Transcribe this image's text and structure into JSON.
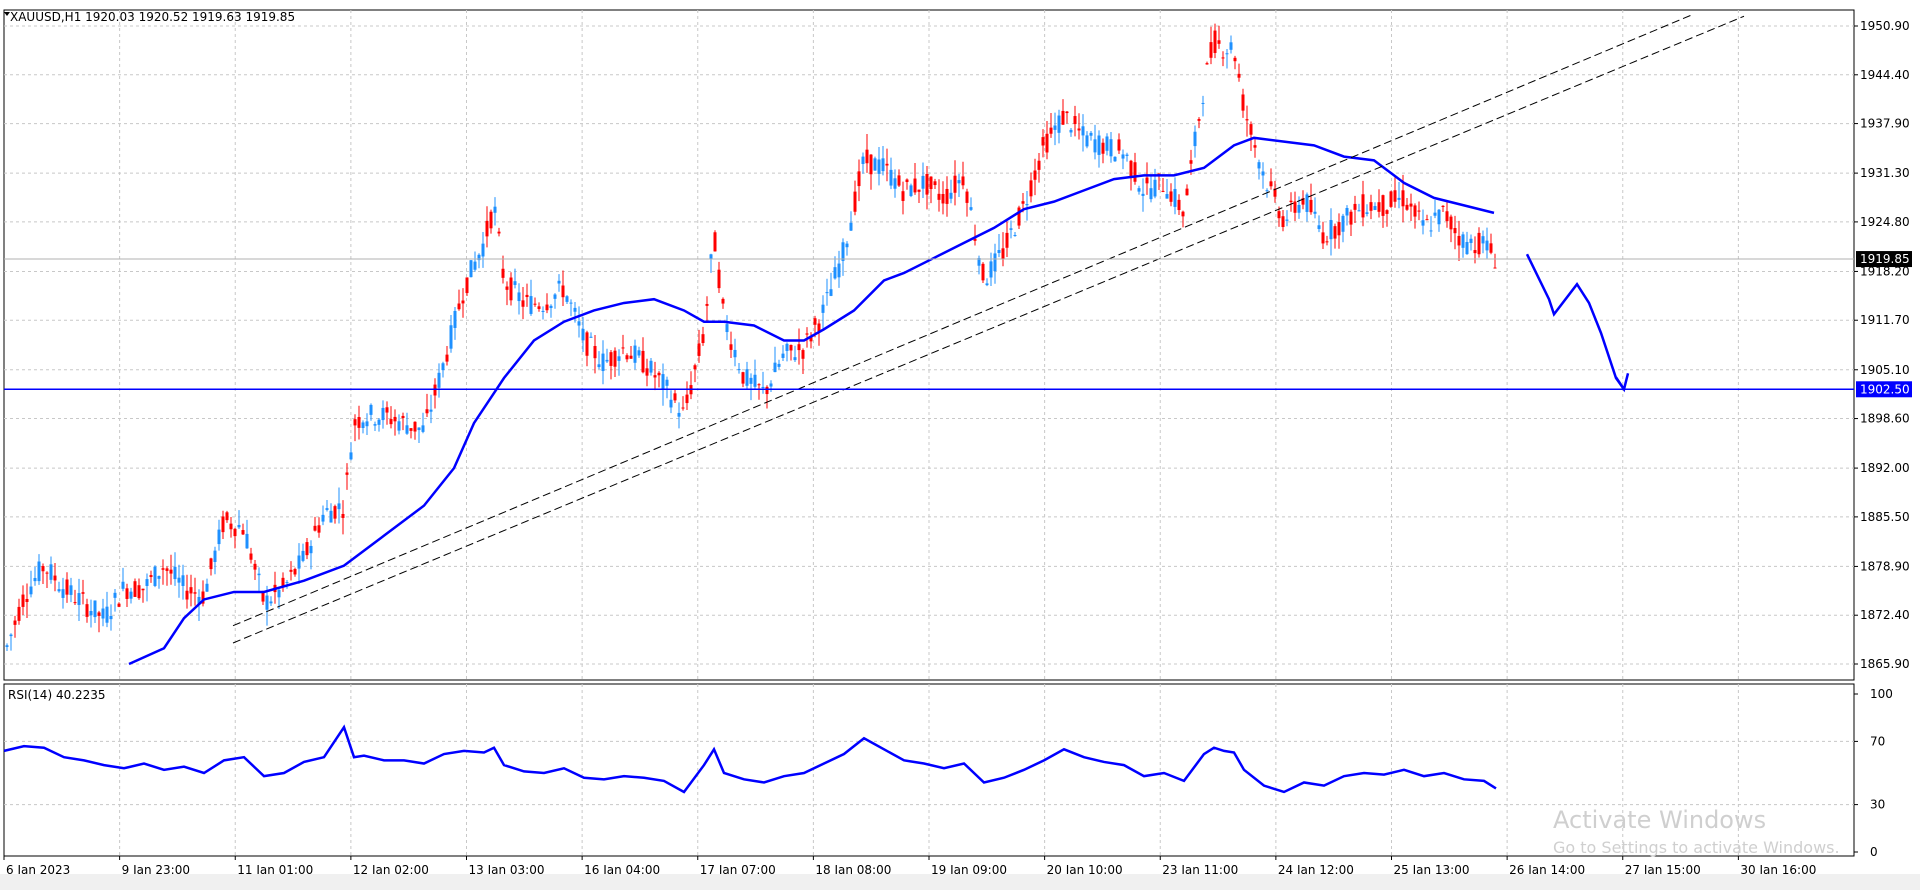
{
  "symbol_info": "XAUUSD,H1  1920.03 1920.52 1919.63 1919.85",
  "rsi_info": "RSI(14) 40.2235",
  "watermark": {
    "title": "Activate Windows",
    "subtitle": "Go to Settings to activate Windows."
  },
  "colors": {
    "bull_candle": "#1e90ff",
    "bear_candle": "#ff0000",
    "moving_average": "#0000ff",
    "rsi_line": "#0000ff",
    "support_line": "#0000ff",
    "grid": "#c8c8c8",
    "trendline": "#000000",
    "current_price_tag": "#000000",
    "support_tag": "#0000ff"
  },
  "chart_data": [
    {
      "type": "candlestick",
      "symbol": "XAUUSD",
      "timeframe": "H1",
      "open": 1920.03,
      "high": 1920.52,
      "low": 1919.63,
      "close": 1919.85,
      "ylim": [
        1862.5,
        1953.5
      ],
      "y_ticks": [
        1950.9,
        1944.4,
        1937.9,
        1931.3,
        1924.8,
        1918.2,
        1911.7,
        1905.1,
        1898.6,
        1892.0,
        1885.5,
        1878.9,
        1872.4,
        1865.9
      ],
      "y_tick_labels": [
        "1950.90",
        "1944.40",
        "1937.90",
        "1931.30",
        "1924.80",
        "1918.20",
        "1911.70",
        "1905.10",
        "1898.60",
        "1892.00",
        "1885.50",
        "1878.90",
        "1872.40",
        "1865.90"
      ],
      "x_tick_labels": [
        "6 Jan 2023",
        "9 Jan 23:00",
        "11 Jan 01:00",
        "12 Jan 02:00",
        "13 Jan 03:00",
        "16 Jan 04:00",
        "17 Jan 07:00",
        "18 Jan 08:00",
        "19 Jan 09:00",
        "20 Jan 10:00",
        "23 Jan 11:00",
        "24 Jan 12:00",
        "25 Jan 13:00",
        "26 Jan 14:00",
        "27 Jan 15:00",
        "30 Jan 16:00"
      ],
      "current_price": 1919.85,
      "current_price_label": "1919.85",
      "support_level": 1902.5,
      "support_label": "1902.50",
      "grid": true,
      "price_path": [
        [
          0,
          1867
        ],
        [
          20,
          1875
        ],
        [
          40,
          1879
        ],
        [
          60,
          1876
        ],
        [
          80,
          1874
        ],
        [
          100,
          1872
        ],
        [
          120,
          1876
        ],
        [
          140,
          1876
        ],
        [
          160,
          1879
        ],
        [
          180,
          1876
        ],
        [
          200,
          1875
        ],
        [
          220,
          1885
        ],
        [
          240,
          1884
        ],
        [
          260,
          1874
        ],
        [
          280,
          1876
        ],
        [
          300,
          1880
        ],
        [
          320,
          1886
        ],
        [
          340,
          1887
        ],
        [
          350,
          1898
        ],
        [
          360,
          1899
        ],
        [
          380,
          1899
        ],
        [
          400,
          1898
        ],
        [
          420,
          1897
        ],
        [
          440,
          1906
        ],
        [
          460,
          1916
        ],
        [
          480,
          1922
        ],
        [
          490,
          1927
        ],
        [
          500,
          1917
        ],
        [
          520,
          1914
        ],
        [
          540,
          1914
        ],
        [
          560,
          1916
        ],
        [
          580,
          1909
        ],
        [
          600,
          1906
        ],
        [
          620,
          1908
        ],
        [
          640,
          1906
        ],
        [
          660,
          1903
        ],
        [
          680,
          1899
        ],
        [
          700,
          1910
        ],
        [
          710,
          1923
        ],
        [
          720,
          1912
        ],
        [
          740,
          1904
        ],
        [
          760,
          1902
        ],
        [
          780,
          1907
        ],
        [
          800,
          1908
        ],
        [
          820,
          1913
        ],
        [
          840,
          1921
        ],
        [
          860,
          1933
        ],
        [
          880,
          1932
        ],
        [
          900,
          1929
        ],
        [
          920,
          1930
        ],
        [
          940,
          1928
        ],
        [
          960,
          1931
        ],
        [
          980,
          1917
        ],
        [
          1000,
          1921
        ],
        [
          1020,
          1927
        ],
        [
          1040,
          1935
        ],
        [
          1060,
          1939
        ],
        [
          1080,
          1936
        ],
        [
          1100,
          1935
        ],
        [
          1120,
          1934
        ],
        [
          1140,
          1929
        ],
        [
          1160,
          1930
        ],
        [
          1180,
          1926
        ],
        [
          1200,
          1943
        ],
        [
          1210,
          1949
        ],
        [
          1220,
          1948
        ],
        [
          1230,
          1948
        ],
        [
          1240,
          1940
        ],
        [
          1260,
          1931
        ],
        [
          1280,
          1925
        ],
        [
          1300,
          1928
        ],
        [
          1320,
          1923
        ],
        [
          1340,
          1925
        ],
        [
          1360,
          1927
        ],
        [
          1380,
          1927
        ],
        [
          1400,
          1928
        ],
        [
          1420,
          1924
        ],
        [
          1440,
          1926
        ],
        [
          1460,
          1922
        ],
        [
          1480,
          1922
        ],
        [
          1492,
          1919.85
        ]
      ],
      "moving_average_path": [
        [
          125,
          1865.9
        ],
        [
          160,
          1868
        ],
        [
          180,
          1872
        ],
        [
          200,
          1874.5
        ],
        [
          230,
          1875.5
        ],
        [
          260,
          1875.5
        ],
        [
          300,
          1877
        ],
        [
          340,
          1879
        ],
        [
          380,
          1883
        ],
        [
          420,
          1887
        ],
        [
          450,
          1892
        ],
        [
          470,
          1898
        ],
        [
          500,
          1904
        ],
        [
          530,
          1909
        ],
        [
          560,
          1911.5
        ],
        [
          590,
          1913
        ],
        [
          620,
          1914
        ],
        [
          650,
          1914.5
        ],
        [
          680,
          1913
        ],
        [
          700,
          1911.5
        ],
        [
          720,
          1911.5
        ],
        [
          750,
          1911
        ],
        [
          780,
          1909
        ],
        [
          800,
          1909
        ],
        [
          820,
          1910.5
        ],
        [
          850,
          1913
        ],
        [
          880,
          1917
        ],
        [
          900,
          1918
        ],
        [
          930,
          1920
        ],
        [
          960,
          1922
        ],
        [
          990,
          1924
        ],
        [
          1020,
          1926.5
        ],
        [
          1050,
          1927.5
        ],
        [
          1080,
          1929
        ],
        [
          1110,
          1930.5
        ],
        [
          1140,
          1931
        ],
        [
          1170,
          1931
        ],
        [
          1200,
          1932
        ],
        [
          1230,
          1935
        ],
        [
          1250,
          1936
        ],
        [
          1280,
          1935.5
        ],
        [
          1310,
          1935
        ],
        [
          1340,
          1933.5
        ],
        [
          1370,
          1933
        ],
        [
          1400,
          1930
        ],
        [
          1430,
          1928
        ],
        [
          1460,
          1927
        ],
        [
          1490,
          1926
        ]
      ],
      "trend_channel": [
        {
          "start": [
            229,
            1871
          ],
          "end": [
            1690,
            1952.5
          ]
        },
        {
          "start": [
            229,
            1868.7
          ],
          "end": [
            1740,
            1952.2
          ]
        }
      ],
      "projection_path": [
        [
          1523,
          1920.5
        ],
        [
          1545,
          1914.5
        ],
        [
          1550,
          1912.5
        ],
        [
          1573,
          1916.5
        ],
        [
          1585,
          1914
        ],
        [
          1597,
          1910
        ],
        [
          1612,
          1904
        ],
        [
          1620,
          1902.5
        ]
      ]
    },
    {
      "type": "line",
      "name": "RSI(14)",
      "value": 40.2235,
      "ylim": [
        0,
        100
      ],
      "y_ticks": [
        100,
        70,
        30,
        0
      ],
      "y_tick_labels": [
        "100",
        "70",
        "30",
        "0"
      ],
      "series": [
        [
          0,
          64
        ],
        [
          20,
          67
        ],
        [
          40,
          66
        ],
        [
          60,
          60
        ],
        [
          80,
          58
        ],
        [
          100,
          55
        ],
        [
          120,
          53
        ],
        [
          140,
          56
        ],
        [
          160,
          52
        ],
        [
          180,
          54
        ],
        [
          200,
          50
        ],
        [
          220,
          58
        ],
        [
          240,
          60
        ],
        [
          260,
          48
        ],
        [
          280,
          50
        ],
        [
          300,
          57
        ],
        [
          320,
          60
        ],
        [
          340,
          79
        ],
        [
          350,
          60
        ],
        [
          360,
          61
        ],
        [
          380,
          58
        ],
        [
          400,
          58
        ],
        [
          420,
          56
        ],
        [
          440,
          62
        ],
        [
          460,
          64
        ],
        [
          480,
          63
        ],
        [
          490,
          66
        ],
        [
          500,
          55
        ],
        [
          520,
          51
        ],
        [
          540,
          50
        ],
        [
          560,
          53
        ],
        [
          580,
          47
        ],
        [
          600,
          46
        ],
        [
          620,
          48
        ],
        [
          640,
          47
        ],
        [
          660,
          45
        ],
        [
          680,
          38
        ],
        [
          700,
          55
        ],
        [
          710,
          65
        ],
        [
          720,
          50
        ],
        [
          740,
          46
        ],
        [
          760,
          44
        ],
        [
          780,
          48
        ],
        [
          800,
          50
        ],
        [
          820,
          56
        ],
        [
          840,
          62
        ],
        [
          860,
          72
        ],
        [
          880,
          65
        ],
        [
          900,
          58
        ],
        [
          920,
          56
        ],
        [
          940,
          53
        ],
        [
          960,
          56
        ],
        [
          980,
          44
        ],
        [
          1000,
          47
        ],
        [
          1020,
          52
        ],
        [
          1040,
          58
        ],
        [
          1060,
          65
        ],
        [
          1080,
          60
        ],
        [
          1100,
          57
        ],
        [
          1120,
          55
        ],
        [
          1140,
          48
        ],
        [
          1160,
          50
        ],
        [
          1180,
          45
        ],
        [
          1200,
          62
        ],
        [
          1210,
          66
        ],
        [
          1220,
          64
        ],
        [
          1230,
          63
        ],
        [
          1240,
          52
        ],
        [
          1260,
          42
        ],
        [
          1280,
          38
        ],
        [
          1300,
          44
        ],
        [
          1320,
          42
        ],
        [
          1340,
          48
        ],
        [
          1360,
          50
        ],
        [
          1380,
          49
        ],
        [
          1400,
          52
        ],
        [
          1420,
          48
        ],
        [
          1440,
          50
        ],
        [
          1460,
          46
        ],
        [
          1480,
          45
        ],
        [
          1492,
          40.2
        ]
      ]
    }
  ]
}
